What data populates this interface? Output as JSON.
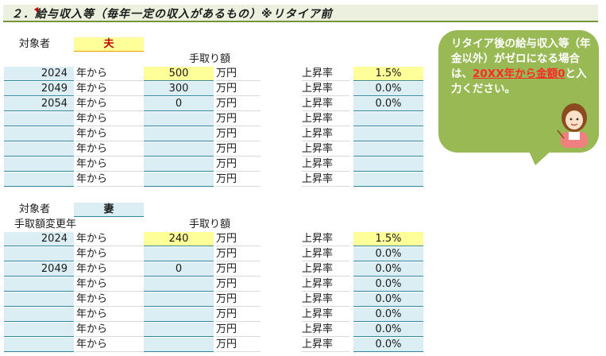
{
  "section": {
    "title": "２．給与収入等（毎年一定の収入があるもの）※リタイア前"
  },
  "husband": {
    "subject_label": "対象者",
    "subject_name": "夫",
    "amount_header": "手取り額",
    "rows": [
      {
        "year": "2024",
        "from": "年から",
        "amount": "500",
        "unit": "万円",
        "rate_label": "上昇率",
        "rate": "1.5%"
      },
      {
        "year": "2049",
        "from": "年から",
        "amount": "300",
        "unit": "万円",
        "rate_label": "上昇率",
        "rate": "0.0%"
      },
      {
        "year": "2054",
        "from": "年から",
        "amount": "0",
        "unit": "万円",
        "rate_label": "上昇率",
        "rate": "0.0%"
      },
      {
        "year": "",
        "from": "年から",
        "amount": "",
        "unit": "万円",
        "rate_label": "上昇率",
        "rate": ""
      },
      {
        "year": "",
        "from": "年から",
        "amount": "",
        "unit": "万円",
        "rate_label": "上昇率",
        "rate": ""
      },
      {
        "year": "",
        "from": "年から",
        "amount": "",
        "unit": "万円",
        "rate_label": "上昇率",
        "rate": ""
      },
      {
        "year": "",
        "from": "年から",
        "amount": "",
        "unit": "万円",
        "rate_label": "上昇率",
        "rate": ""
      },
      {
        "year": "",
        "from": "年から",
        "amount": "",
        "unit": "万円",
        "rate_label": "上昇率",
        "rate": ""
      }
    ]
  },
  "wife": {
    "subject_label": "対象者",
    "subject_name": "妻",
    "change_year_header": "手取額変更年",
    "amount_header": "手取り額",
    "rows": [
      {
        "year": "2024",
        "from": "年から",
        "amount": "240",
        "unit": "万円",
        "rate_label": "上昇率",
        "rate": "1.5%"
      },
      {
        "year": "",
        "from": "年から",
        "amount": "",
        "unit": "万円",
        "rate_label": "上昇率",
        "rate": "0.0%"
      },
      {
        "year": "2049",
        "from": "年から",
        "amount": "0",
        "unit": "万円",
        "rate_label": "上昇率",
        "rate": "0.0%"
      },
      {
        "year": "",
        "from": "年から",
        "amount": "",
        "unit": "万円",
        "rate_label": "上昇率",
        "rate": "0.0%"
      },
      {
        "year": "",
        "from": "年から",
        "amount": "",
        "unit": "万円",
        "rate_label": "上昇率",
        "rate": "0.0%"
      },
      {
        "year": "",
        "from": "年から",
        "amount": "",
        "unit": "万円",
        "rate_label": "上昇率",
        "rate": "0.0%"
      },
      {
        "year": "",
        "from": "年から",
        "amount": "",
        "unit": "万円",
        "rate_label": "上昇率",
        "rate": "0.0%"
      },
      {
        "year": "",
        "from": "年から",
        "amount": "",
        "unit": "万円",
        "rate_label": "上昇率",
        "rate": "0.0%"
      }
    ]
  },
  "note": {
    "line1": "リタイア後の給与収入等（年金以外）がゼロになる場合は、",
    "highlight": "20XX年から金額0",
    "line2": "と入力ください。",
    "avatar_icon": "woman-pointing-icon"
  },
  "colors": {
    "input_yellow": "#ffff99",
    "input_blue": "#dbeef3",
    "header_green": "#77933c",
    "bubble_green": "#98b954"
  }
}
